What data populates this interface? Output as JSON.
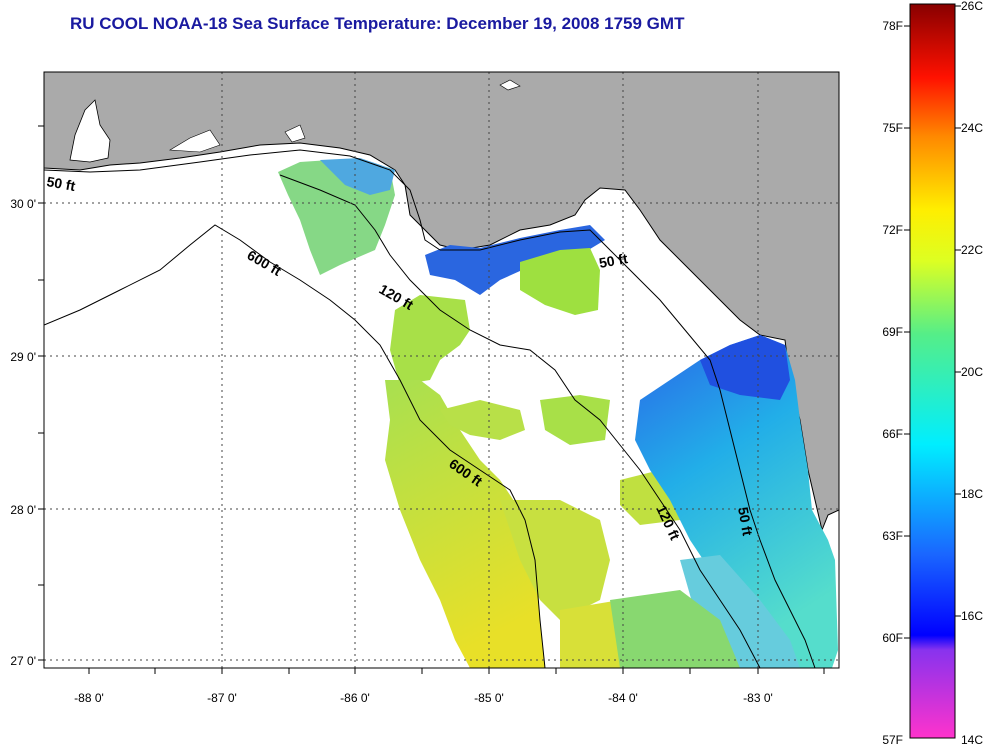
{
  "title": "RU COOL  NOAA-18  Sea Surface Temperature:  December 19, 2008 1759 GMT",
  "lat_labels": [
    "30 0'",
    "29 0'",
    "28 0'",
    "27 0'"
  ],
  "lon_labels": [
    "-88 0'",
    "-87 0'",
    "-86 0'",
    "-85 0'",
    "-84 0'",
    "-83 0'"
  ],
  "contours": {
    "c50_west": "50 ft",
    "c600_west": "600 ft",
    "c120_mid": "120 ft",
    "c50_east": "50 ft",
    "c600_south": "600 ft",
    "c120_south": "120 ft",
    "c50_south": "50 ft"
  },
  "colorbar": {
    "fahrenheit": [
      "78F",
      "75F",
      "72F",
      "69F",
      "66F",
      "63F",
      "60F",
      "57F"
    ],
    "celsius": [
      "26C",
      "24C",
      "22C",
      "20C",
      "18C",
      "16C",
      "14C"
    ]
  },
  "colors": {
    "land": "#aaaaaa",
    "title": "#1a1aa0",
    "cold": "#2a55e0",
    "cool": "#22c4e8",
    "mild": "#9ee040",
    "warm": "#e8e820"
  }
}
